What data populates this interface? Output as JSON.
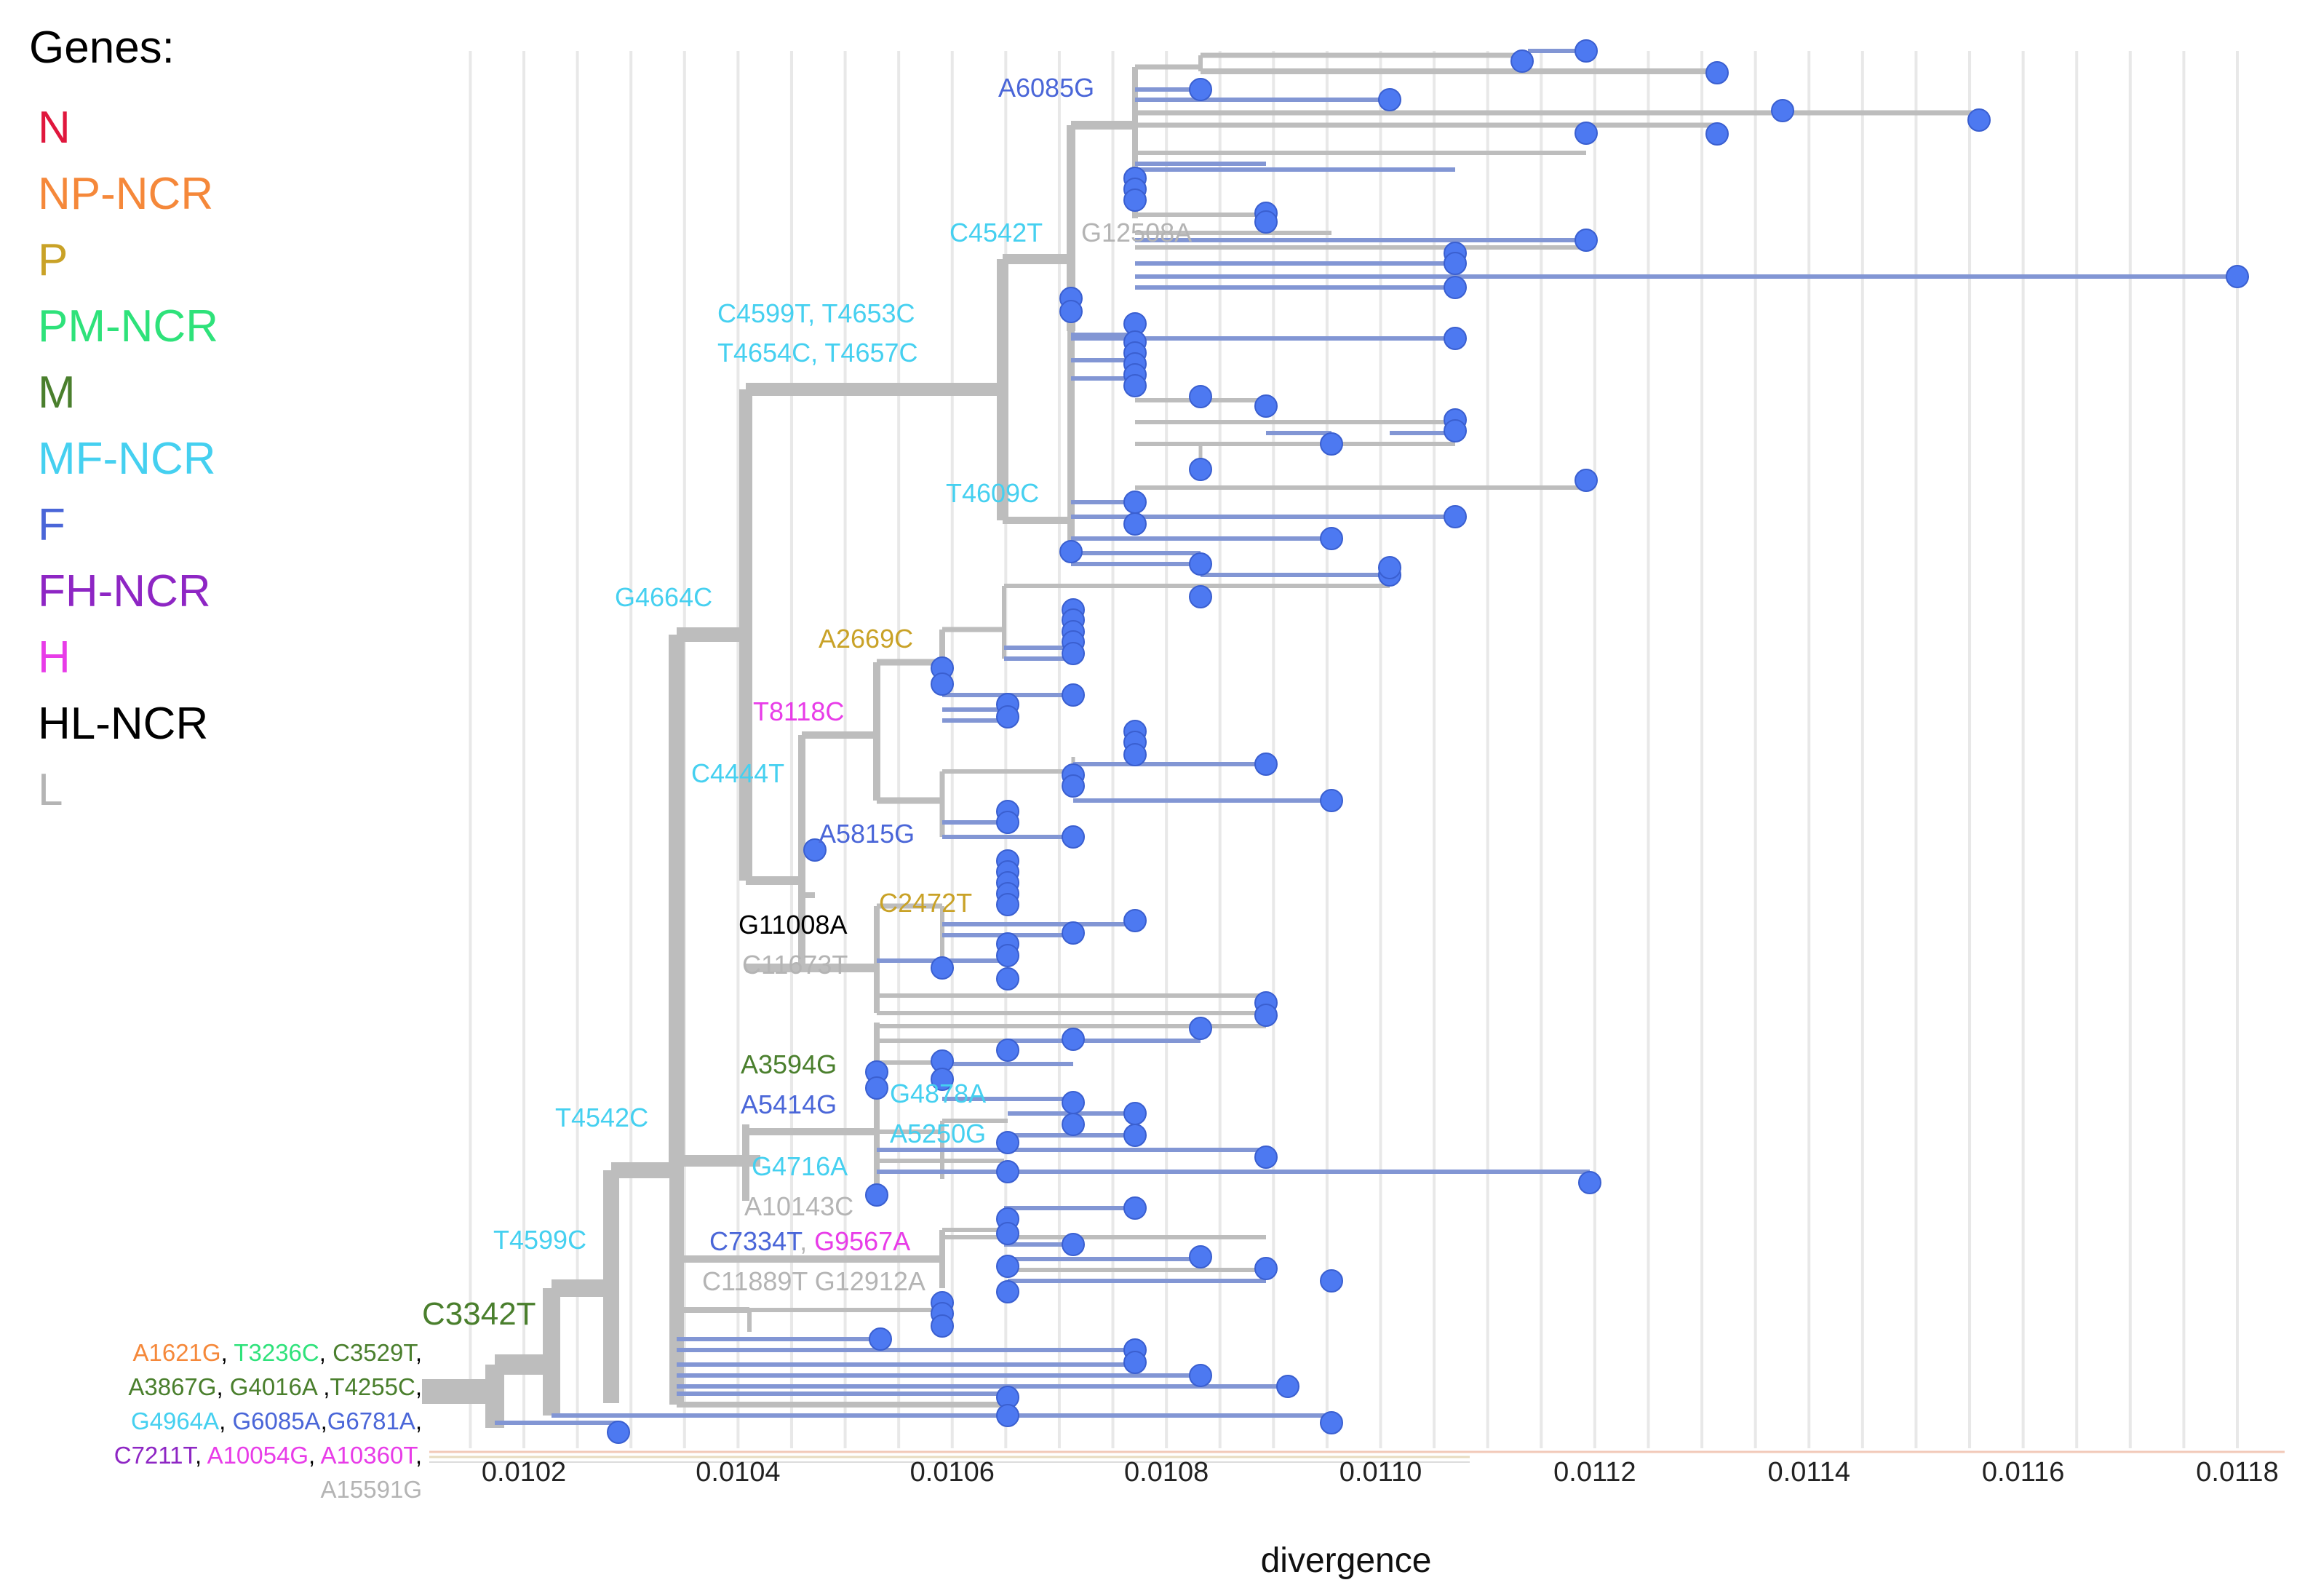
{
  "legend": {
    "title": "Genes:",
    "items": [
      {
        "label": "N",
        "color": "#e0173d"
      },
      {
        "label": "NP-NCR",
        "color": "#f5883a"
      },
      {
        "label": "P",
        "color": "#c9a227"
      },
      {
        "label": "PM-NCR",
        "color": "#2ee27a"
      },
      {
        "label": "M",
        "color": "#4a7f2d"
      },
      {
        "label": "MF-NCR",
        "color": "#45d0f0"
      },
      {
        "label": "F",
        "color": "#4a66d8"
      },
      {
        "label": "FH-NCR",
        "color": "#8e26c4"
      },
      {
        "label": "H",
        "color": "#e83ce8"
      },
      {
        "label": "HL-NCR",
        "color": "#000000"
      },
      {
        "label": "L",
        "color": "#b4b4b4"
      }
    ]
  },
  "colors": {
    "branch": "#bdbdbd",
    "leaf_branch": "#8296d4",
    "node": "#4d79f1",
    "node_edge": "#3a5fd0",
    "grid": "#e8e8e8"
  },
  "axis": {
    "title": "divergence",
    "range": [
      0.01008,
      0.01187
    ],
    "ticks": [
      "0.0102",
      "0.0104",
      "0.0106",
      "0.0108",
      "0.0110",
      "0.0112",
      "0.0114",
      "0.0116",
      "0.0118"
    ]
  },
  "root_mutations": [
    [
      {
        "t": "A1621G",
        "c": "#f5883a"
      },
      {
        "t": ", ",
        "c": "#000000"
      },
      {
        "t": "T3236C",
        "c": "#2ee27a"
      },
      {
        "t": ", ",
        "c": "#000000"
      },
      {
        "t": "C3529T",
        "c": "#4a7f2d"
      },
      {
        "t": ",",
        "c": "#000000"
      }
    ],
    [
      {
        "t": "A3867G",
        "c": "#4a7f2d"
      },
      {
        "t": ", ",
        "c": "#000000"
      },
      {
        "t": "G4016A",
        "c": "#4a7f2d"
      },
      {
        "t": " ,",
        "c": "#000000"
      },
      {
        "t": "T4255C",
        "c": "#4a7f2d"
      },
      {
        "t": ",",
        "c": "#000000"
      }
    ],
    [
      {
        "t": "G4964A",
        "c": "#45d0f0"
      },
      {
        "t": ", ",
        "c": "#000000"
      },
      {
        "t": "G6085A",
        "c": "#4a66d8"
      },
      {
        "t": ",",
        "c": "#000000"
      },
      {
        "t": "G6781A",
        "c": "#4a66d8"
      },
      {
        "t": ",",
        "c": "#000000"
      }
    ],
    [
      {
        "t": "C7211T",
        "c": "#8e26c4"
      },
      {
        "t": ", ",
        "c": "#000000"
      },
      {
        "t": "A10054G",
        "c": "#e83ce8"
      },
      {
        "t": ", ",
        "c": "#000000"
      },
      {
        "t": "A10360T",
        "c": "#e83ce8"
      },
      {
        "t": ",",
        "c": "#000000"
      }
    ],
    [
      {
        "t": "A15591G",
        "c": "#b4b4b4"
      }
    ]
  ],
  "branch_mutations": [
    {
      "text": "C3342T",
      "color": "#4a7f2d"
    },
    {
      "text": "T4599C",
      "color": "#45d0f0"
    },
    {
      "text": "T4542C",
      "color": "#45d0f0"
    },
    {
      "text": "G4664C",
      "color": "#45d0f0"
    },
    {
      "text": "C4599T, T4653C",
      "color": "#45d0f0"
    },
    {
      "text": "T4654C, T4657C",
      "color": "#45d0f0"
    },
    {
      "text": "C4542T",
      "color": "#45d0f0"
    },
    {
      "text": "G12508A",
      "color": "#b4b4b4"
    },
    {
      "text": "A6085G",
      "color": "#4a66d8"
    },
    {
      "text": "T4609C",
      "color": "#45d0f0"
    },
    {
      "text": "A2669C",
      "color": "#c9a227"
    },
    {
      "text": "T8118C",
      "color": "#e83ce8"
    },
    {
      "text": "C4444T",
      "color": "#45d0f0"
    },
    {
      "text": "A5815G",
      "color": "#4a66d8"
    },
    {
      "text": "C2472T",
      "color": "#c9a227"
    },
    {
      "text": "G11008A",
      "color": "#000000"
    },
    {
      "text": "C11673T",
      "color": "#b4b4b4"
    },
    {
      "text": "A3594G",
      "color": "#4a7f2d"
    },
    {
      "text": "A5414G",
      "color": "#4a66d8"
    },
    {
      "text": "G4878A",
      "color": "#45d0f0"
    },
    {
      "text": "A5250G",
      "color": "#45d0f0"
    },
    {
      "text": "G4716A",
      "color": "#45d0f0"
    },
    {
      "text": "A10143C",
      "color": "#b4b4b4"
    },
    {
      "text": "C7334T",
      "color": "#4a66d8"
    },
    {
      "text": ", ",
      "color": "#b4b4b4"
    },
    {
      "text": "G9567A",
      "color": "#e83ce8"
    },
    {
      "text": "C11889T G12912A",
      "color": "#b4b4b4"
    }
  ]
}
